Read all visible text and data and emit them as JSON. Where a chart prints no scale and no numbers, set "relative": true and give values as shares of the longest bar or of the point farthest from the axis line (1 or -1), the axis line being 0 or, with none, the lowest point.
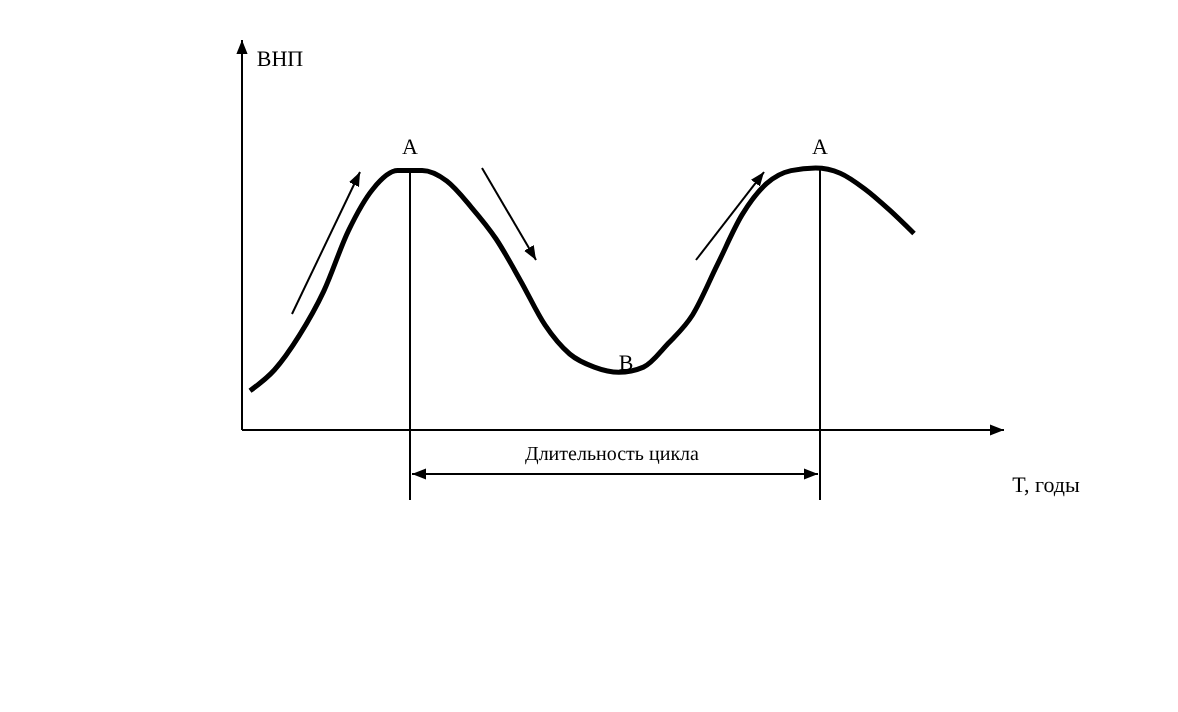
{
  "chart_data": {
    "type": "line",
    "relative": true,
    "xlabel": "T, годы",
    "ylabel": "ВНП",
    "color": "#000000",
    "categories": [
      null,
      null,
      null,
      null,
      null,
      null,
      null,
      null,
      null,
      null,
      null,
      null,
      null,
      null,
      null,
      null,
      null,
      null,
      null,
      null,
      null,
      null,
      null,
      null,
      null,
      null,
      null,
      null
    ],
    "values": [
      0.15,
      0.23,
      0.36,
      0.53,
      0.76,
      0.92,
      0.99,
      0.99,
      0.95,
      0.85,
      0.73,
      0.57,
      0.4,
      0.29,
      0.24,
      0.22,
      0.24,
      0.33,
      0.44,
      0.63,
      0.82,
      0.94,
      0.99,
      1,
      0.98,
      0.92,
      0.84,
      0.75
    ],
    "annotations": [
      "A",
      "B",
      "A",
      "Длительность цикла"
    ]
  }
}
